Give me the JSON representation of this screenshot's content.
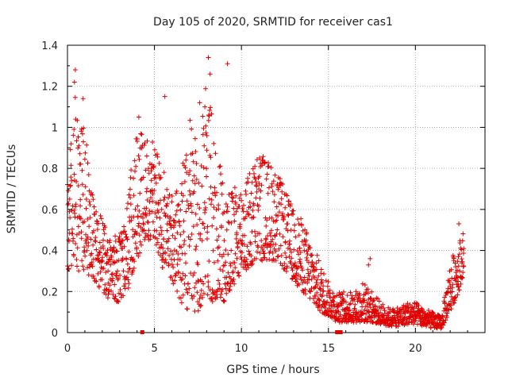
{
  "chart_data": {
    "type": "scatter",
    "title": "Day 105 of 2020, SRMTID for receiver cas1",
    "xlabel": "GPS time / hours",
    "ylabel": "SRMTID / TECUs",
    "xlim": [
      0,
      24
    ],
    "ylim": [
      0,
      1.4
    ],
    "xticks": [
      0,
      5,
      10,
      15,
      20
    ],
    "yticks": [
      0,
      0.2,
      0.4,
      0.6,
      0.8,
      1,
      1.2,
      1.4
    ],
    "xtick_labels": [
      "0",
      "5",
      "10",
      "15",
      "20"
    ],
    "ytick_labels": [
      "0",
      "0.2",
      "0.4",
      "0.6",
      "0.8",
      "1",
      "1.2",
      "1.4"
    ],
    "grid": true,
    "marker": "plus",
    "colors": {
      "series": "#e00000",
      "grid": "#a0a0a0"
    },
    "series": [
      {
        "name": "SRMTID",
        "envelope_hours": [
          0,
          0.5,
          1,
          1.5,
          2,
          2.5,
          3,
          3.5,
          4,
          4.5,
          5,
          5.5,
          6,
          6.5,
          7,
          7.5,
          8,
          8.5,
          9,
          9.5,
          10,
          10.5,
          11,
          11.5,
          12,
          12.5,
          13,
          13.5,
          14,
          14.5,
          15,
          15.5,
          16,
          16.5,
          17,
          17.5,
          18,
          18.5,
          19,
          19.5,
          20,
          20.5,
          21,
          21.5,
          22,
          22.5,
          22.8
        ],
        "envelope_low": [
          0.25,
          0.3,
          0.3,
          0.25,
          0.2,
          0.15,
          0.15,
          0.2,
          0.35,
          0.45,
          0.45,
          0.3,
          0.25,
          0.15,
          0.1,
          0.1,
          0.15,
          0.15,
          0.15,
          0.2,
          0.3,
          0.3,
          0.35,
          0.35,
          0.35,
          0.3,
          0.25,
          0.2,
          0.15,
          0.1,
          0.08,
          0.05,
          0.05,
          0.05,
          0.05,
          0.05,
          0.04,
          0.03,
          0.03,
          0.04,
          0.04,
          0.03,
          0.02,
          0.02,
          0.1,
          0.2,
          0.3
        ],
        "envelope_high": [
          0.75,
          1.2,
          1.0,
          0.65,
          0.55,
          0.45,
          0.5,
          0.7,
          1.0,
          1.0,
          0.95,
          0.8,
          0.7,
          0.75,
          1.05,
          0.9,
          1.25,
          1.0,
          0.75,
          0.7,
          0.75,
          0.8,
          0.9,
          0.85,
          0.8,
          0.7,
          0.6,
          0.55,
          0.45,
          0.35,
          0.25,
          0.2,
          0.2,
          0.2,
          0.25,
          0.2,
          0.15,
          0.12,
          0.12,
          0.15,
          0.15,
          0.12,
          0.1,
          0.08,
          0.35,
          0.45,
          0.5
        ],
        "outliers": [
          [
            0.45,
            1.28
          ],
          [
            0.4,
            1.22
          ],
          [
            8.1,
            1.34
          ],
          [
            9.2,
            1.31
          ],
          [
            8.2,
            1.26
          ],
          [
            5.6,
            1.15
          ],
          [
            0.9,
            1.14
          ],
          [
            7.6,
            1.12
          ],
          [
            7.9,
            1.1
          ],
          [
            4.1,
            1.05
          ],
          [
            22.5,
            0.53
          ],
          [
            17.4,
            0.36
          ],
          [
            17.3,
            0.33
          ]
        ],
        "zero_markers": [
          4.3,
          15.5,
          15.7
        ]
      }
    ]
  }
}
